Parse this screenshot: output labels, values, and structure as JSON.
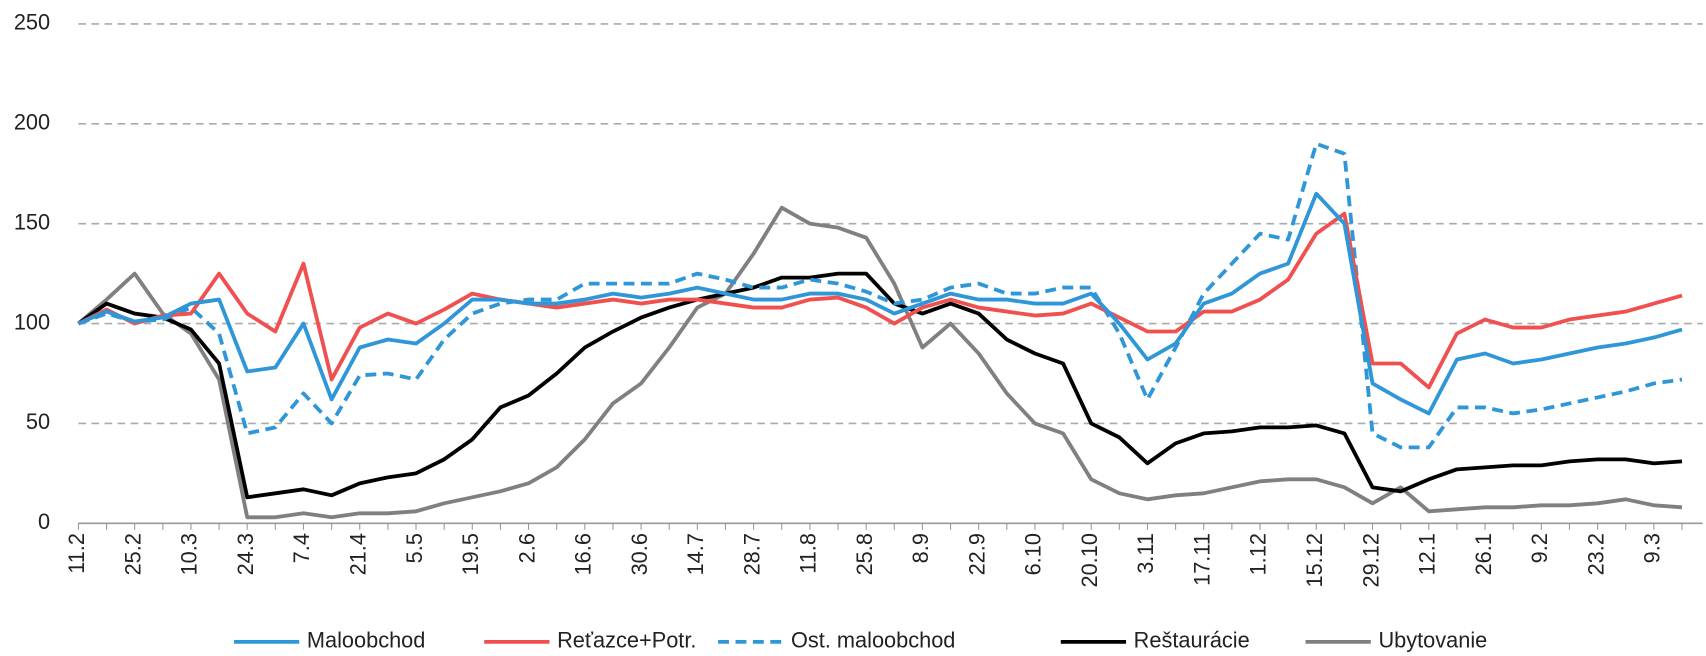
{
  "chart_data": {
    "type": "line",
    "categories": [
      "11.2",
      null,
      "25.2",
      null,
      "10.3",
      null,
      "24.3",
      null,
      "7.4",
      null,
      "21.4",
      null,
      "5.5",
      null,
      "19.5",
      null,
      "2.6",
      null,
      "16.6",
      null,
      "30.6",
      null,
      "14.7",
      null,
      "28.7",
      null,
      "11.8",
      null,
      "25.8",
      null,
      "8.9",
      null,
      "22.9",
      null,
      "6.10",
      null,
      "20.10",
      null,
      "3.11",
      null,
      "17.11",
      null,
      "1.12",
      null,
      "15.12",
      null,
      "29.12",
      null,
      "12.1",
      null,
      "26.1",
      null,
      "9.2",
      null,
      "23.2",
      null,
      "9.3",
      null
    ],
    "series": [
      {
        "name": "Maloobchod",
        "color": "#2f97d8",
        "dash": false,
        "values": [
          100,
          106,
          101,
          103,
          110,
          112,
          76,
          78,
          100,
          62,
          88,
          92,
          90,
          100,
          112,
          112,
          110,
          110,
          112,
          115,
          113,
          115,
          118,
          115,
          112,
          112,
          115,
          115,
          112,
          105,
          110,
          115,
          112,
          112,
          110,
          110,
          115,
          100,
          82,
          90,
          110,
          115,
          125,
          130,
          165,
          150,
          70,
          62,
          55,
          82,
          85,
          80,
          82,
          85,
          88,
          90,
          93,
          97
        ]
      },
      {
        "name": "Reťazce+Potr.",
        "color": "#f05050",
        "dash": false,
        "values": [
          100,
          107,
          100,
          104,
          105,
          125,
          105,
          96,
          130,
          72,
          98,
          105,
          100,
          107,
          115,
          112,
          110,
          108,
          110,
          112,
          110,
          112,
          112,
          110,
          108,
          108,
          112,
          113,
          108,
          100,
          108,
          112,
          108,
          106,
          104,
          105,
          110,
          103,
          96,
          96,
          106,
          106,
          112,
          122,
          145,
          155,
          80,
          80,
          68,
          95,
          102,
          98,
          98,
          102,
          104,
          106,
          110,
          114
        ]
      },
      {
        "name": "Ost. maloobchod",
        "color": "#2f97d8",
        "dash": true,
        "values": [
          100,
          105,
          101,
          102,
          108,
          95,
          45,
          48,
          65,
          50,
          74,
          75,
          72,
          92,
          105,
          110,
          112,
          112,
          120,
          120,
          120,
          120,
          125,
          122,
          118,
          118,
          122,
          120,
          116,
          110,
          112,
          118,
          120,
          115,
          115,
          118,
          118,
          95,
          62,
          88,
          115,
          130,
          145,
          142,
          190,
          185,
          45,
          38,
          38,
          58,
          58,
          55,
          57,
          60,
          63,
          66,
          70,
          72
        ]
      },
      {
        "name": "Reštaurácie",
        "color": "#000000",
        "dash": false,
        "values": [
          100,
          110,
          105,
          103,
          97,
          80,
          13,
          15,
          17,
          14,
          20,
          23,
          25,
          32,
          42,
          58,
          64,
          75,
          88,
          96,
          103,
          108,
          112,
          115,
          118,
          123,
          123,
          125,
          125,
          110,
          105,
          110,
          105,
          92,
          85,
          80,
          50,
          43,
          30,
          40,
          45,
          46,
          48,
          48,
          49,
          45,
          18,
          16,
          22,
          27,
          28,
          29,
          29,
          31,
          32,
          32,
          30,
          31
        ]
      },
      {
        "name": "Ubytovanie",
        "color": "#808080",
        "dash": false,
        "values": [
          100,
          112,
          125,
          105,
          95,
          72,
          3,
          3,
          5,
          3,
          5,
          5,
          6,
          10,
          13,
          16,
          20,
          28,
          42,
          60,
          70,
          88,
          108,
          115,
          135,
          158,
          150,
          148,
          143,
          120,
          88,
          100,
          85,
          65,
          50,
          45,
          22,
          15,
          12,
          14,
          15,
          18,
          21,
          22,
          22,
          18,
          10,
          18,
          6,
          7,
          8,
          8,
          9,
          9,
          10,
          12,
          9,
          8
        ]
      }
    ],
    "ylim": [
      0,
      250
    ],
    "yticks": [
      0,
      50,
      100,
      150,
      200,
      250
    ],
    "grid": true,
    "legend": "bottom"
  }
}
